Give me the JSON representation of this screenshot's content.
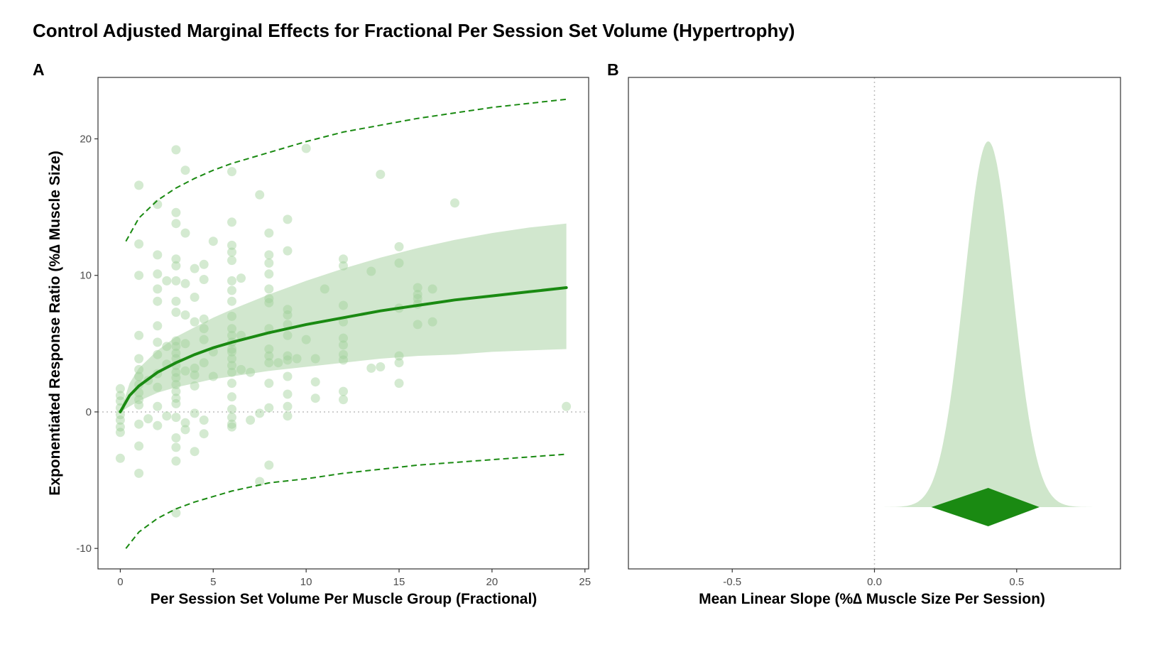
{
  "title": "Control Adjusted Marginal Effects for Fractional Per Session Set Volume (Hypertrophy)",
  "chart_data": [
    {
      "panel": "A",
      "type": "scatter",
      "xlabel": "Per Session Set Volume Per Muscle Group (Fractional)",
      "ylabel": "Exponentiated Response Ratio (%∆ Muscle Size)",
      "xlim": [
        -1.2,
        25.2
      ],
      "ylim": [
        -11.5,
        24.5
      ],
      "x_ticks": [
        0,
        5,
        10,
        15,
        20,
        25
      ],
      "y_ticks": [
        -10,
        0,
        10,
        20
      ],
      "grid": false,
      "reference_line_y": 0,
      "colors": {
        "fit": "#1a8a12",
        "ribbon": "#cfe6cb",
        "points": "#9fd09a",
        "prediction": "#1a8a12"
      },
      "fit": {
        "x": [
          0,
          0.5,
          1,
          2,
          3,
          4,
          5,
          6,
          8,
          10,
          12,
          14,
          16,
          18,
          20,
          22,
          24
        ],
        "y": [
          0,
          1.2,
          1.9,
          2.9,
          3.6,
          4.2,
          4.7,
          5.1,
          5.8,
          6.4,
          6.9,
          7.4,
          7.8,
          8.2,
          8.5,
          8.8,
          9.1
        ],
        "ci_lower": [
          0,
          0.4,
          0.8,
          1.4,
          1.8,
          2.1,
          2.4,
          2.6,
          3.0,
          3.3,
          3.6,
          3.9,
          4.1,
          4.2,
          4.4,
          4.5,
          4.6
        ],
        "ci_upper": [
          0,
          2.1,
          3.2,
          4.5,
          5.5,
          6.2,
          6.9,
          7.5,
          8.6,
          9.6,
          10.5,
          11.3,
          12.0,
          12.6,
          13.1,
          13.5,
          13.8
        ]
      },
      "prediction_interval": {
        "x": [
          0.3,
          1,
          2,
          3,
          4,
          5,
          6,
          7,
          8,
          10,
          12,
          14,
          16,
          18,
          20,
          22,
          24
        ],
        "upper": [
          12.5,
          14.2,
          15.5,
          16.4,
          17.1,
          17.7,
          18.2,
          18.6,
          19.0,
          19.8,
          20.5,
          21.0,
          21.5,
          21.9,
          22.3,
          22.6,
          22.9
        ],
        "lower": [
          -10.0,
          -8.8,
          -7.8,
          -7.1,
          -6.6,
          -6.2,
          -5.8,
          -5.5,
          -5.2,
          -4.9,
          -4.5,
          -4.2,
          -3.9,
          -3.7,
          -3.5,
          -3.3,
          -3.1
        ]
      },
      "points": [
        {
          "x": 0,
          "y": 1.7
        },
        {
          "x": 0,
          "y": 1.2
        },
        {
          "x": 0,
          "y": 0.8
        },
        {
          "x": 0,
          "y": 0.3
        },
        {
          "x": 0,
          "y": -0.2
        },
        {
          "x": 0,
          "y": -0.6
        },
        {
          "x": 0,
          "y": -1.1
        },
        {
          "x": 0,
          "y": -1.5
        },
        {
          "x": 0,
          "y": -3.4
        },
        {
          "x": 1,
          "y": 16.6
        },
        {
          "x": 1,
          "y": 12.3
        },
        {
          "x": 1,
          "y": 10.0
        },
        {
          "x": 1,
          "y": 5.6
        },
        {
          "x": 1,
          "y": 3.9
        },
        {
          "x": 1,
          "y": 3.1
        },
        {
          "x": 1,
          "y": 2.6
        },
        {
          "x": 1,
          "y": 2.0
        },
        {
          "x": 1,
          "y": 1.4
        },
        {
          "x": 1,
          "y": 0.9
        },
        {
          "x": 1,
          "y": 0.5
        },
        {
          "x": 1,
          "y": -0.9
        },
        {
          "x": 1,
          "y": -2.5
        },
        {
          "x": 1,
          "y": -4.5
        },
        {
          "x": 1.5,
          "y": 2.3
        },
        {
          "x": 1.5,
          "y": -0.5
        },
        {
          "x": 2,
          "y": 15.2
        },
        {
          "x": 2,
          "y": 11.5
        },
        {
          "x": 2,
          "y": 10.1
        },
        {
          "x": 2,
          "y": 9.0
        },
        {
          "x": 2,
          "y": 8.1
        },
        {
          "x": 2,
          "y": 6.3
        },
        {
          "x": 2,
          "y": 5.1
        },
        {
          "x": 2,
          "y": 4.2
        },
        {
          "x": 2,
          "y": 2.8
        },
        {
          "x": 2,
          "y": 1.8
        },
        {
          "x": 2,
          "y": 0.4
        },
        {
          "x": 2,
          "y": -1.0
        },
        {
          "x": 2.5,
          "y": 9.6
        },
        {
          "x": 2.5,
          "y": 4.8
        },
        {
          "x": 2.5,
          "y": 3.5
        },
        {
          "x": 2.5,
          "y": -0.3
        },
        {
          "x": 3,
          "y": 19.2
        },
        {
          "x": 3,
          "y": 14.6
        },
        {
          "x": 3,
          "y": 13.8
        },
        {
          "x": 3,
          "y": 11.2
        },
        {
          "x": 3,
          "y": 10.7
        },
        {
          "x": 3,
          "y": 9.6
        },
        {
          "x": 3,
          "y": 8.1
        },
        {
          "x": 3,
          "y": 7.3
        },
        {
          "x": 3,
          "y": 5.2
        },
        {
          "x": 3,
          "y": 4.8
        },
        {
          "x": 3,
          "y": 4.3
        },
        {
          "x": 3,
          "y": 3.9
        },
        {
          "x": 3,
          "y": 3.4
        },
        {
          "x": 3,
          "y": 2.9
        },
        {
          "x": 3,
          "y": 2.5
        },
        {
          "x": 3,
          "y": 2.0
        },
        {
          "x": 3,
          "y": 1.5
        },
        {
          "x": 3,
          "y": 1.0
        },
        {
          "x": 3,
          "y": 0.6
        },
        {
          "x": 3,
          "y": -0.4
        },
        {
          "x": 3,
          "y": -1.9
        },
        {
          "x": 3,
          "y": -2.6
        },
        {
          "x": 3,
          "y": -3.6
        },
        {
          "x": 3,
          "y": -7.4
        },
        {
          "x": 3.5,
          "y": 17.7
        },
        {
          "x": 3.5,
          "y": 13.1
        },
        {
          "x": 3.5,
          "y": 9.4
        },
        {
          "x": 3.5,
          "y": 7.1
        },
        {
          "x": 3.5,
          "y": 5.0
        },
        {
          "x": 3.5,
          "y": 3.0
        },
        {
          "x": 3.5,
          "y": -0.8
        },
        {
          "x": 3.5,
          "y": -1.3
        },
        {
          "x": 4,
          "y": 10.5
        },
        {
          "x": 4,
          "y": 8.4
        },
        {
          "x": 4,
          "y": 6.6
        },
        {
          "x": 4,
          "y": 3.2
        },
        {
          "x": 4,
          "y": 2.7
        },
        {
          "x": 4,
          "y": 1.9
        },
        {
          "x": 4,
          "y": -0.1
        },
        {
          "x": 4,
          "y": -2.9
        },
        {
          "x": 4.5,
          "y": 10.8
        },
        {
          "x": 4.5,
          "y": 9.7
        },
        {
          "x": 4.5,
          "y": 6.8
        },
        {
          "x": 4.5,
          "y": 6.1
        },
        {
          "x": 4.5,
          "y": 5.3
        },
        {
          "x": 4.5,
          "y": 3.6
        },
        {
          "x": 4.5,
          "y": -0.6
        },
        {
          "x": 4.5,
          "y": -1.6
        },
        {
          "x": 5,
          "y": 12.5
        },
        {
          "x": 5,
          "y": 4.4
        },
        {
          "x": 5,
          "y": 2.6
        },
        {
          "x": 6,
          "y": 17.6
        },
        {
          "x": 6,
          "y": 13.9
        },
        {
          "x": 6,
          "y": 12.2
        },
        {
          "x": 6,
          "y": 11.7
        },
        {
          "x": 6,
          "y": 11.1
        },
        {
          "x": 6,
          "y": 9.6
        },
        {
          "x": 6,
          "y": 8.9
        },
        {
          "x": 6,
          "y": 8.1
        },
        {
          "x": 6,
          "y": 7.0
        },
        {
          "x": 6,
          "y": 6.1
        },
        {
          "x": 6,
          "y": 5.6
        },
        {
          "x": 6,
          "y": 5.1
        },
        {
          "x": 6,
          "y": 4.6
        },
        {
          "x": 6,
          "y": 4.4
        },
        {
          "x": 6,
          "y": 3.9
        },
        {
          "x": 6,
          "y": 3.4
        },
        {
          "x": 6,
          "y": 2.9
        },
        {
          "x": 6,
          "y": 2.1
        },
        {
          "x": 6,
          "y": 1.1
        },
        {
          "x": 6,
          "y": 0.2
        },
        {
          "x": 6,
          "y": -0.4
        },
        {
          "x": 6,
          "y": -0.9
        },
        {
          "x": 6,
          "y": -1.1
        },
        {
          "x": 6.5,
          "y": 9.8
        },
        {
          "x": 6.5,
          "y": 5.6
        },
        {
          "x": 6.5,
          "y": 3.1
        },
        {
          "x": 7,
          "y": 2.9
        },
        {
          "x": 7,
          "y": -0.6
        },
        {
          "x": 7.5,
          "y": 15.9
        },
        {
          "x": 7.5,
          "y": -5.1
        },
        {
          "x": 7.5,
          "y": -0.1
        },
        {
          "x": 8,
          "y": 13.1
        },
        {
          "x": 8,
          "y": 11.5
        },
        {
          "x": 8,
          "y": 10.9
        },
        {
          "x": 8,
          "y": 10.1
        },
        {
          "x": 8,
          "y": 9.0
        },
        {
          "x": 8,
          "y": 8.3
        },
        {
          "x": 8,
          "y": 8.0
        },
        {
          "x": 8,
          "y": 6.1
        },
        {
          "x": 8,
          "y": 4.6
        },
        {
          "x": 8,
          "y": 4.1
        },
        {
          "x": 8,
          "y": 3.6
        },
        {
          "x": 8,
          "y": 2.1
        },
        {
          "x": 8,
          "y": 0.3
        },
        {
          "x": 8,
          "y": -3.9
        },
        {
          "x": 8.5,
          "y": 3.6
        },
        {
          "x": 9,
          "y": 14.1
        },
        {
          "x": 9,
          "y": 11.8
        },
        {
          "x": 9,
          "y": 7.5
        },
        {
          "x": 9,
          "y": 7.1
        },
        {
          "x": 9,
          "y": 6.4
        },
        {
          "x": 9,
          "y": 5.6
        },
        {
          "x": 9,
          "y": 4.1
        },
        {
          "x": 9,
          "y": 3.8
        },
        {
          "x": 9,
          "y": 2.6
        },
        {
          "x": 9,
          "y": 1.3
        },
        {
          "x": 9,
          "y": 0.4
        },
        {
          "x": 9,
          "y": -0.3
        },
        {
          "x": 9.5,
          "y": 3.9
        },
        {
          "x": 10,
          "y": 19.3
        },
        {
          "x": 10,
          "y": 5.3
        },
        {
          "x": 10.5,
          "y": 3.9
        },
        {
          "x": 10.5,
          "y": 2.2
        },
        {
          "x": 10.5,
          "y": 1.0
        },
        {
          "x": 11,
          "y": 9.0
        },
        {
          "x": 12,
          "y": 11.2
        },
        {
          "x": 12,
          "y": 10.7
        },
        {
          "x": 12,
          "y": 7.8
        },
        {
          "x": 12,
          "y": 6.6
        },
        {
          "x": 12,
          "y": 5.4
        },
        {
          "x": 12,
          "y": 4.9
        },
        {
          "x": 12,
          "y": 4.2
        },
        {
          "x": 12,
          "y": 3.8
        },
        {
          "x": 12,
          "y": 1.5
        },
        {
          "x": 12,
          "y": 0.9
        },
        {
          "x": 13.5,
          "y": 10.3
        },
        {
          "x": 13.5,
          "y": 3.2
        },
        {
          "x": 14,
          "y": 17.4
        },
        {
          "x": 14,
          "y": 3.3
        },
        {
          "x": 15,
          "y": 12.1
        },
        {
          "x": 15,
          "y": 10.9
        },
        {
          "x": 15,
          "y": 7.6
        },
        {
          "x": 15,
          "y": 4.1
        },
        {
          "x": 15,
          "y": 3.6
        },
        {
          "x": 15,
          "y": 2.1
        },
        {
          "x": 16,
          "y": 9.1
        },
        {
          "x": 16,
          "y": 8.6
        },
        {
          "x": 16,
          "y": 8.3
        },
        {
          "x": 16,
          "y": 7.9
        },
        {
          "x": 16,
          "y": 6.4
        },
        {
          "x": 16.8,
          "y": 9.0
        },
        {
          "x": 16.8,
          "y": 6.6
        },
        {
          "x": 18,
          "y": 15.3
        },
        {
          "x": 24,
          "y": 0.4
        }
      ]
    },
    {
      "panel": "B",
      "type": "area",
      "xlabel": "Mean Linear Slope (%∆ Muscle Size Per Session)",
      "ylabel": "",
      "xlim": [
        -0.865,
        0.865
      ],
      "x_ticks": [
        -0.5,
        0.0,
        0.5
      ],
      "x_tick_labels": [
        "-0.5",
        "0.0",
        "0.5"
      ],
      "grid": false,
      "reference_line_x": 0,
      "posterior_density": {
        "mean": 0.4,
        "sd": 0.085
      },
      "point_estimate": {
        "mean": 0.4,
        "lower": 0.2,
        "upper": 0.58
      },
      "colors": {
        "density": "#cfe6cb",
        "estimate": "#1a8a12"
      }
    }
  ]
}
